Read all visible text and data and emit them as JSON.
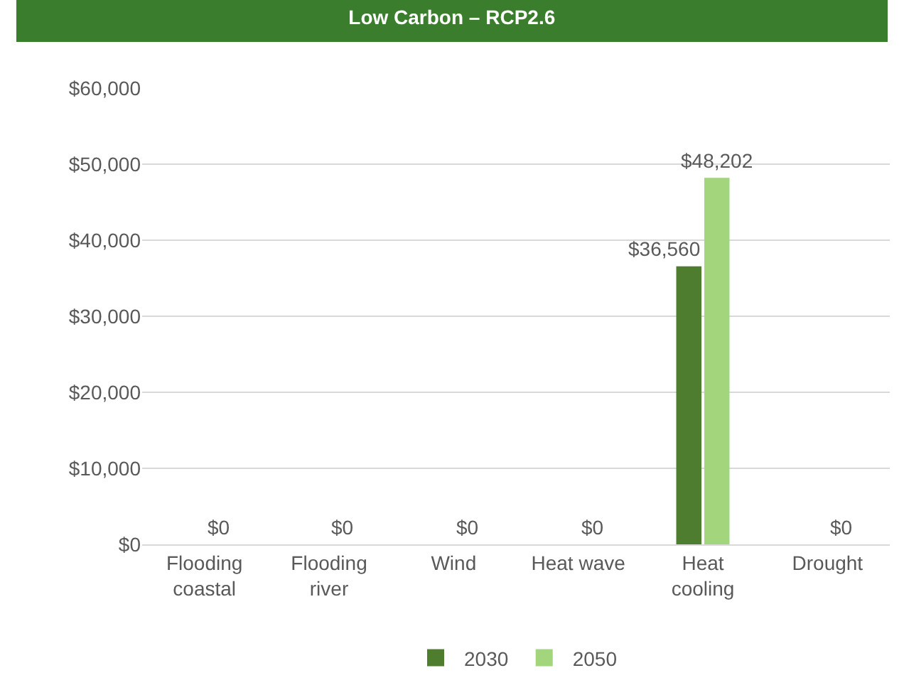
{
  "chart_data": {
    "type": "bar",
    "title": "Low Carbon – RCP2.6",
    "categories": [
      "Flooding coastal",
      "Flooding river",
      "Wind",
      "Heat wave",
      "Heat cooling",
      "Drought"
    ],
    "series": [
      {
        "name": "2030",
        "color": "#4e7d2f",
        "values": [
          0,
          0,
          0,
          0,
          36560,
          0
        ],
        "value_labels": [
          null,
          null,
          null,
          null,
          "$36,560",
          null
        ]
      },
      {
        "name": "2050",
        "color": "#a2d57c",
        "values": [
          0,
          0,
          0,
          0,
          48202,
          0
        ],
        "value_labels": [
          "$0",
          "$0",
          "$0",
          "$0",
          "$48,202",
          "$0"
        ]
      }
    ],
    "ylim": [
      0,
      60000
    ],
    "yticks": [
      {
        "value": 0,
        "label": "$0"
      },
      {
        "value": 10000,
        "label": "$10,000"
      },
      {
        "value": 20000,
        "label": "$20,000"
      },
      {
        "value": 30000,
        "label": "$30,000"
      },
      {
        "value": 40000,
        "label": "$40,000"
      },
      {
        "value": 50000,
        "label": "$50,000"
      },
      {
        "value": 60000,
        "label": "$60,000"
      }
    ],
    "grid": "y",
    "legend": "bottom"
  }
}
